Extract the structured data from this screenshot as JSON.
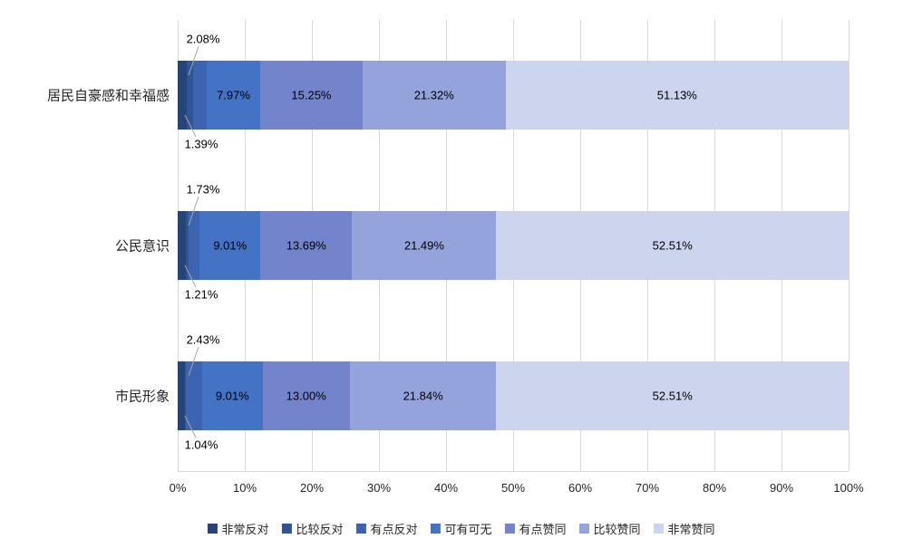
{
  "chart_data": {
    "type": "bar",
    "orientation": "horizontal",
    "stacked": true,
    "percent_stacked": true,
    "categories": [
      "居民自豪感和幸福感",
      "公民意识",
      "市民形象"
    ],
    "series": [
      {
        "name": "非常反对",
        "color": "#264478",
        "values": [
          1.39,
          1.21,
          1.04
        ],
        "labels": [
          "1.39%",
          "1.21%",
          "1.04%"
        ],
        "label_placement": "callout-below"
      },
      {
        "name": "比较反对",
        "color": "#2F5597",
        "values": [
          0.86,
          0.36,
          0.17
        ],
        "labels": [
          "",
          "",
          ""
        ],
        "label_placement": "none"
      },
      {
        "name": "有点反对",
        "color": "#3C64B0",
        "values": [
          2.08,
          1.73,
          2.43
        ],
        "labels": [
          "2.08%",
          "1.73%",
          "2.43%"
        ],
        "label_placement": "callout-above"
      },
      {
        "name": "可有可无",
        "color": "#4472C4",
        "values": [
          7.97,
          9.01,
          9.01
        ],
        "labels": [
          "7.97%",
          "9.01%",
          "9.01%"
        ],
        "label_placement": "inside"
      },
      {
        "name": "有点赞同",
        "color": "#7384CD",
        "values": [
          15.25,
          13.69,
          13.0
        ],
        "labels": [
          "15.25%",
          "13.69%",
          "13.00%"
        ],
        "label_placement": "inside"
      },
      {
        "name": "比较赞同",
        "color": "#95A3DC",
        "values": [
          21.32,
          21.49,
          21.84
        ],
        "labels": [
          "21.32%",
          "21.49%",
          "21.84%"
        ],
        "label_placement": "inside"
      },
      {
        "name": "非常赞同",
        "color": "#CDD4EE",
        "values": [
          51.13,
          52.51,
          52.51
        ],
        "labels": [
          "51.13%",
          "52.51%",
          "52.51%"
        ],
        "label_placement": "inside"
      }
    ],
    "x_axis": {
      "min": 0,
      "max": 100,
      "ticks": [
        "0%",
        "10%",
        "20%",
        "30%",
        "40%",
        "50%",
        "60%",
        "70%",
        "80%",
        "90%",
        "100%"
      ],
      "gridlines": true
    },
    "legend": {
      "position": "bottom",
      "items": [
        "非常反对",
        "比较反对",
        "有点反对",
        "可有可无",
        "有点赞同",
        "比较赞同",
        "非常赞同"
      ]
    },
    "colors": {
      "gridline": "#D9D9D9",
      "leader_line": "#A6A6A6",
      "axis_text": "#262626",
      "data_label_text": "#000000",
      "background": "#FFFFFF"
    }
  }
}
